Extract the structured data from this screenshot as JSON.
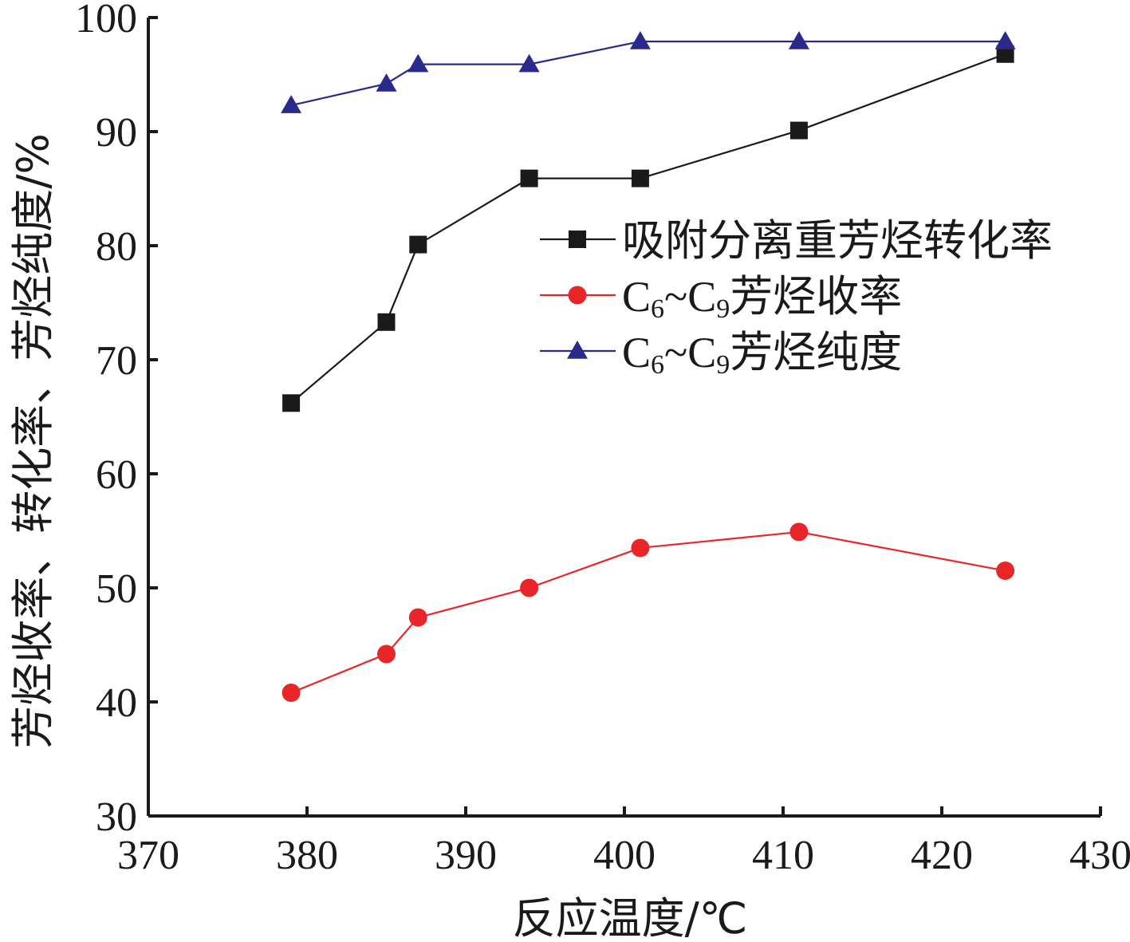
{
  "chart_data": {
    "type": "line",
    "xlabel": "反应温度/℃",
    "ylabel": "芳烃收率、转化率、芳烃纯度/%",
    "xlim": [
      370,
      430
    ],
    "ylim": [
      30,
      100
    ],
    "xticks": [
      370,
      380,
      390,
      400,
      410,
      420,
      430
    ],
    "yticks": [
      30,
      40,
      50,
      60,
      70,
      80,
      90,
      100
    ],
    "grid": false,
    "legend_position": "center-right",
    "series": [
      {
        "name": "吸附分离重芳烃转化率",
        "legend_parts": [
          "吸附分离重芳烃转化率"
        ],
        "color": "#1a1a1a",
        "marker": "square",
        "x": [
          379,
          385,
          387,
          394,
          401,
          411,
          424
        ],
        "y": [
          66.2,
          73.3,
          80.1,
          85.9,
          85.9,
          90.1,
          96.8
        ]
      },
      {
        "name": "C6~C9芳烃收率",
        "legend_parts": [
          "C",
          "6",
          "~C",
          "9",
          "芳烃收率"
        ],
        "color": "#e8262a",
        "marker": "circle",
        "x": [
          379,
          385,
          387,
          394,
          401,
          411,
          424
        ],
        "y": [
          40.8,
          44.2,
          47.4,
          50.0,
          53.5,
          54.9,
          51.5
        ]
      },
      {
        "name": "C6~C9芳烃纯度",
        "legend_parts": [
          "C",
          "6",
          "~C",
          "9",
          "芳烃纯度"
        ],
        "color": "#2a2a8c",
        "marker": "triangle",
        "x": [
          379,
          385,
          387,
          394,
          401,
          411,
          424
        ],
        "y": [
          92.3,
          94.2,
          95.9,
          95.9,
          97.9,
          97.9,
          97.9
        ]
      }
    ]
  }
}
